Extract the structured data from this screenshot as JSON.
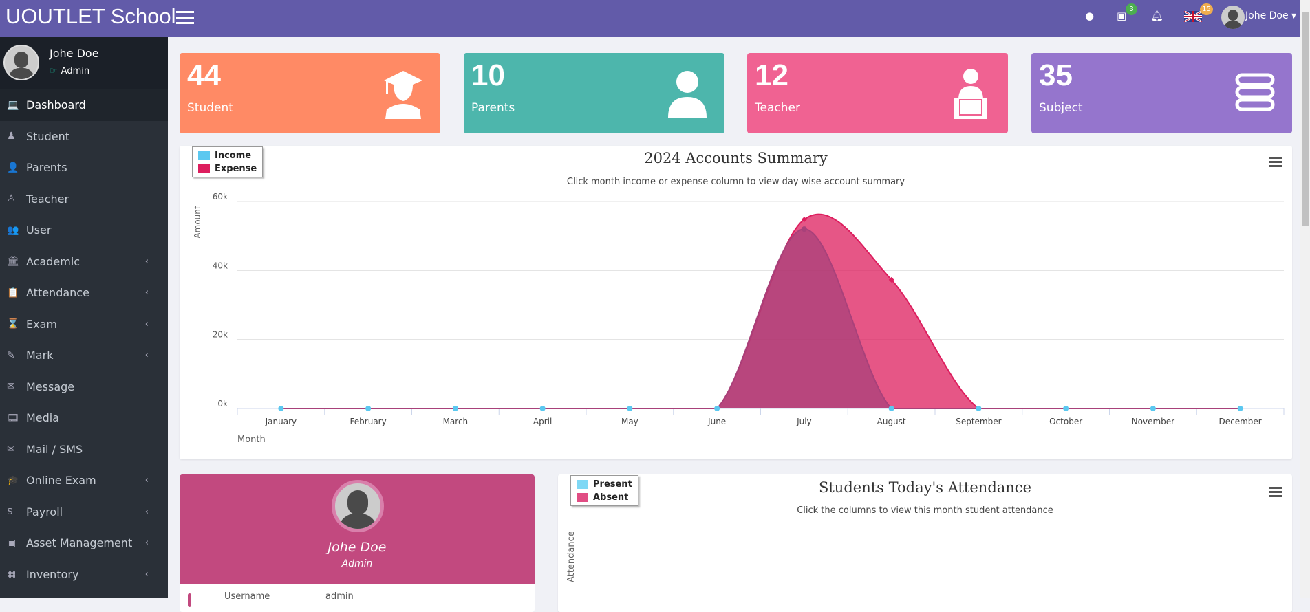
{
  "topbar": {
    "brand": "UOUTLET School",
    "calendar_badge": "3",
    "lang_badge": "15",
    "user_name": "Johe Doe"
  },
  "sidebar": {
    "profile_name": "Johe Doe",
    "profile_role": "Admin",
    "items": [
      {
        "label": "Dashboard",
        "icon": "laptop-icon",
        "glyph": "💻",
        "sub": false
      },
      {
        "label": "Student",
        "icon": "student-icon",
        "glyph": "♟",
        "sub": false
      },
      {
        "label": "Parents",
        "icon": "user-icon",
        "glyph": "👤",
        "sub": false
      },
      {
        "label": "Teacher",
        "icon": "teacher-icon",
        "glyph": "♙",
        "sub": false
      },
      {
        "label": "User",
        "icon": "users-icon",
        "glyph": "👥",
        "sub": false
      },
      {
        "label": "Academic",
        "icon": "building-icon",
        "glyph": "🏛",
        "sub": true
      },
      {
        "label": "Attendance",
        "icon": "clipboard-icon",
        "glyph": "📋",
        "sub": true
      },
      {
        "label": "Exam",
        "icon": "hourglass-icon",
        "glyph": "⌛",
        "sub": true
      },
      {
        "label": "Mark",
        "icon": "edit-icon",
        "glyph": "✎",
        "sub": true
      },
      {
        "label": "Message",
        "icon": "envelope-icon",
        "glyph": "✉",
        "sub": false
      },
      {
        "label": "Media",
        "icon": "film-icon",
        "glyph": "🎞",
        "sub": false
      },
      {
        "label": "Mail / SMS",
        "icon": "envelope-open-icon",
        "glyph": "✉",
        "sub": false
      },
      {
        "label": "Online Exam",
        "icon": "graduation-cap-icon",
        "glyph": "🎓",
        "sub": true
      },
      {
        "label": "Payroll",
        "icon": "dollar-icon",
        "glyph": "$",
        "sub": true
      },
      {
        "label": "Asset Management",
        "icon": "archive-icon",
        "glyph": "▣",
        "sub": true
      },
      {
        "label": "Inventory",
        "icon": "cash-register-icon",
        "glyph": "▦",
        "sub": true
      }
    ]
  },
  "cards": [
    {
      "count": "44",
      "label": "Student",
      "color": "#ff8a65"
    },
    {
      "count": "10",
      "label": "Parents",
      "color": "#4db6ac"
    },
    {
      "count": "12",
      "label": "Teacher",
      "color": "#f06292"
    },
    {
      "count": "35",
      "label": "Subject",
      "color": "#9575cd"
    }
  ],
  "chart_data": {
    "type": "area",
    "title": "2024 Accounts Summary",
    "subtitle": "Click month income or expense column to view day wise account summary",
    "xlabel": "Month",
    "ylabel": "Amount",
    "ylim": [
      0,
      60000
    ],
    "yticks": [
      "0k",
      "20k",
      "40k",
      "60k"
    ],
    "legend_position": "top-left",
    "categories": [
      "January",
      "February",
      "March",
      "April",
      "May",
      "June",
      "July",
      "August",
      "September",
      "October",
      "November",
      "December"
    ],
    "series": [
      {
        "name": "Income",
        "color": "#5bc8f0",
        "values": [
          0,
          0,
          0,
          0,
          0,
          0,
          52000,
          0,
          0,
          0,
          0,
          0
        ]
      },
      {
        "name": "Expense",
        "color": "#dd1e5e",
        "values": [
          0,
          0,
          0,
          0,
          0,
          0,
          54800,
          37300,
          0,
          0,
          0,
          0
        ]
      }
    ]
  },
  "attendance": {
    "title": "Students Today's Attendance",
    "subtitle": "Click the columns to view this month student attendance",
    "ylabel": "Attendance",
    "legend": [
      {
        "name": "Present",
        "color": "#7fd8f5"
      },
      {
        "name": "Absent",
        "color": "#e14d84"
      }
    ]
  },
  "profile_card": {
    "name": "Johe Doe",
    "role": "Admin",
    "username_label": "Username",
    "username_value": "admin"
  }
}
